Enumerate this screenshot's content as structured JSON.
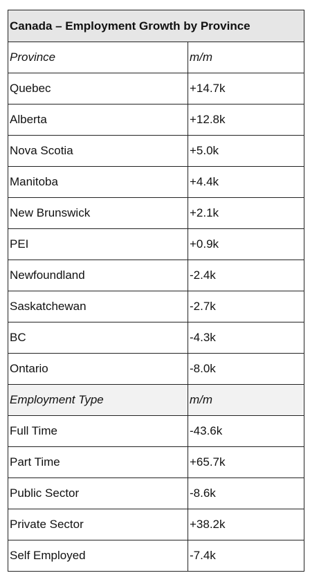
{
  "title": "Canada – Employment Growth by Province",
  "sections": [
    {
      "header": [
        "Province",
        "m/m"
      ],
      "rows": [
        [
          "Quebec",
          "+14.7k"
        ],
        [
          "Alberta",
          "+12.8k"
        ],
        [
          "Nova Scotia",
          "+5.0k"
        ],
        [
          "Manitoba",
          "+4.4k"
        ],
        [
          "New Brunswick",
          "+2.1k"
        ],
        [
          "PEI",
          "+0.9k"
        ],
        [
          "Newfoundland",
          "-2.4k"
        ],
        [
          "Saskatchewan",
          "-2.7k"
        ],
        [
          "BC",
          "-4.3k"
        ],
        [
          "Ontario",
          "-8.0k"
        ]
      ]
    },
    {
      "header": [
        "Employment Type",
        "m/m"
      ],
      "rows": [
        [
          "Full Time",
          "-43.6k"
        ],
        [
          "Part Time",
          "+65.7k"
        ],
        [
          "Public Sector",
          "-8.6k"
        ],
        [
          "Private Sector",
          "+38.2k"
        ],
        [
          "Self Employed",
          "-7.4k"
        ]
      ]
    }
  ]
}
